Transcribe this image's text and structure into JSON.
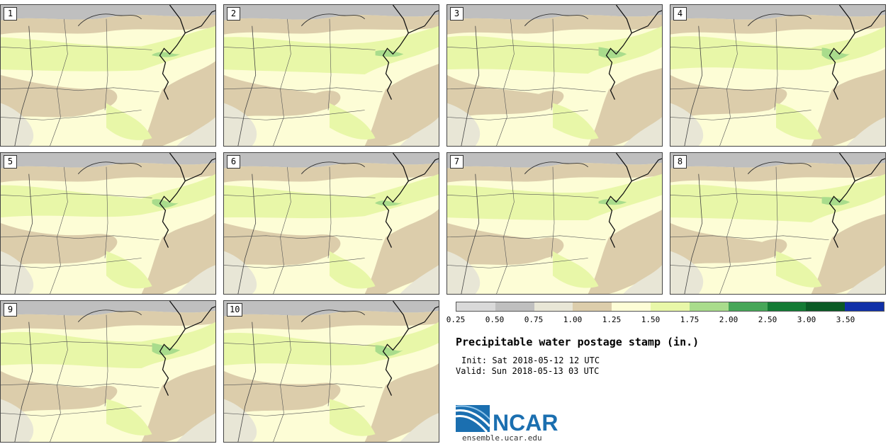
{
  "panels": [
    "1",
    "2",
    "3",
    "4",
    "5",
    "6",
    "7",
    "8",
    "9",
    "10"
  ],
  "colorbar": {
    "colors": [
      "#d9d9d9",
      "#bfbfbf",
      "#e8e6d6",
      "#dccdab",
      "#fdfdd6",
      "#e8f7a8",
      "#a9dc8c",
      "#46a658",
      "#137a34",
      "#0a5a25",
      "#1030a8"
    ],
    "labels": [
      "0.25",
      "0.50",
      "0.75",
      "1.00",
      "1.25",
      "1.50",
      "1.75",
      "2.00",
      "2.50",
      "3.00",
      "3.50"
    ]
  },
  "title": "Precipitable water postage stamp (in.)",
  "init": "Init: Sat 2018-05-12 12 UTC",
  "valid": "Valid: Sun 2018-05-13 03 UTC",
  "logo": {
    "text": "NCAR",
    "site": "ensemble.ucar.edu",
    "color": "#1b6fb0"
  }
}
